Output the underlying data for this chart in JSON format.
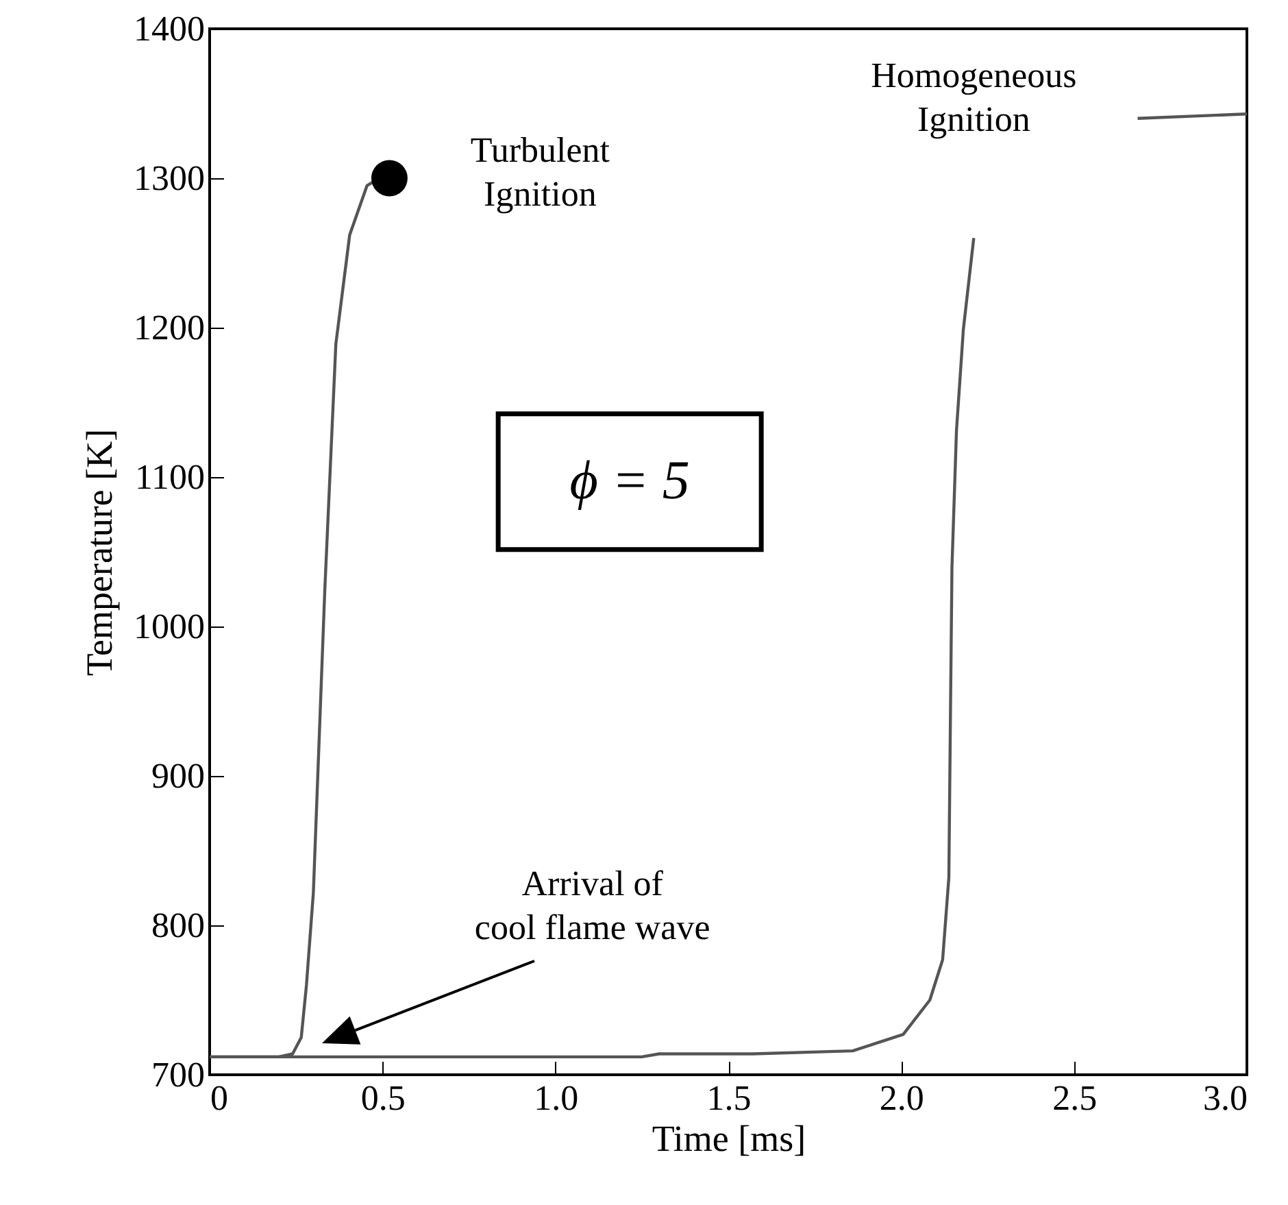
{
  "chart_data": {
    "type": "line",
    "xlabel": "Time [ms]",
    "ylabel": "Temperature [K]",
    "xlim": [
      0,
      3
    ],
    "ylim": [
      700,
      1400
    ],
    "xticks": [
      0,
      0.5,
      {
        "value": 1,
        "label": "1.0"
      },
      1.5,
      {
        "value": 2,
        "label": "2.0"
      },
      2.5,
      {
        "value": 3,
        "label": "3.0"
      }
    ],
    "yticks": [
      700,
      800,
      900,
      1000,
      1100,
      1200,
      1300,
      1400
    ],
    "grid": false,
    "line_style": "solid",
    "series": [
      {
        "color": "#555555",
        "x": [
          0,
          0.2,
          0.24,
          0.265,
          0.28,
          0.3,
          0.333,
          0.365,
          0.405,
          0.455,
          0.49
        ],
        "values": [
          712,
          712,
          714,
          725,
          760,
          822,
          1024,
          1189,
          1262,
          1295,
          1300
        ]
      },
      {
        "color": "#555555",
        "x": [
          0,
          1.25,
          1.3,
          1.57,
          1.86,
          2.006,
          2.083,
          2.12,
          2.138,
          2.143,
          2.147,
          2.16,
          2.18,
          2.21,
          2.45,
          2.684,
          3.0
        ],
        "values": [
          712,
          712,
          714,
          714,
          716,
          727,
          750,
          777,
          832,
          950,
          1040,
          1131,
          1199,
          1260,
          null,
          1340,
          1343
        ]
      },
      {
        "type": "scatter",
        "marker": "circle",
        "color": "#000000",
        "x": [
          0.52
        ],
        "values": [
          1300
        ]
      }
    ],
    "annotations": [
      {
        "text": "Turbulent\nIgnition",
        "x": 0.52,
        "y": 1300
      },
      {
        "text": "Homogeneous\nIgnition",
        "x": 2.21,
        "y": 1260
      },
      "Arrival of\ncool flame wave",
      "ϕ = 5"
    ]
  }
}
